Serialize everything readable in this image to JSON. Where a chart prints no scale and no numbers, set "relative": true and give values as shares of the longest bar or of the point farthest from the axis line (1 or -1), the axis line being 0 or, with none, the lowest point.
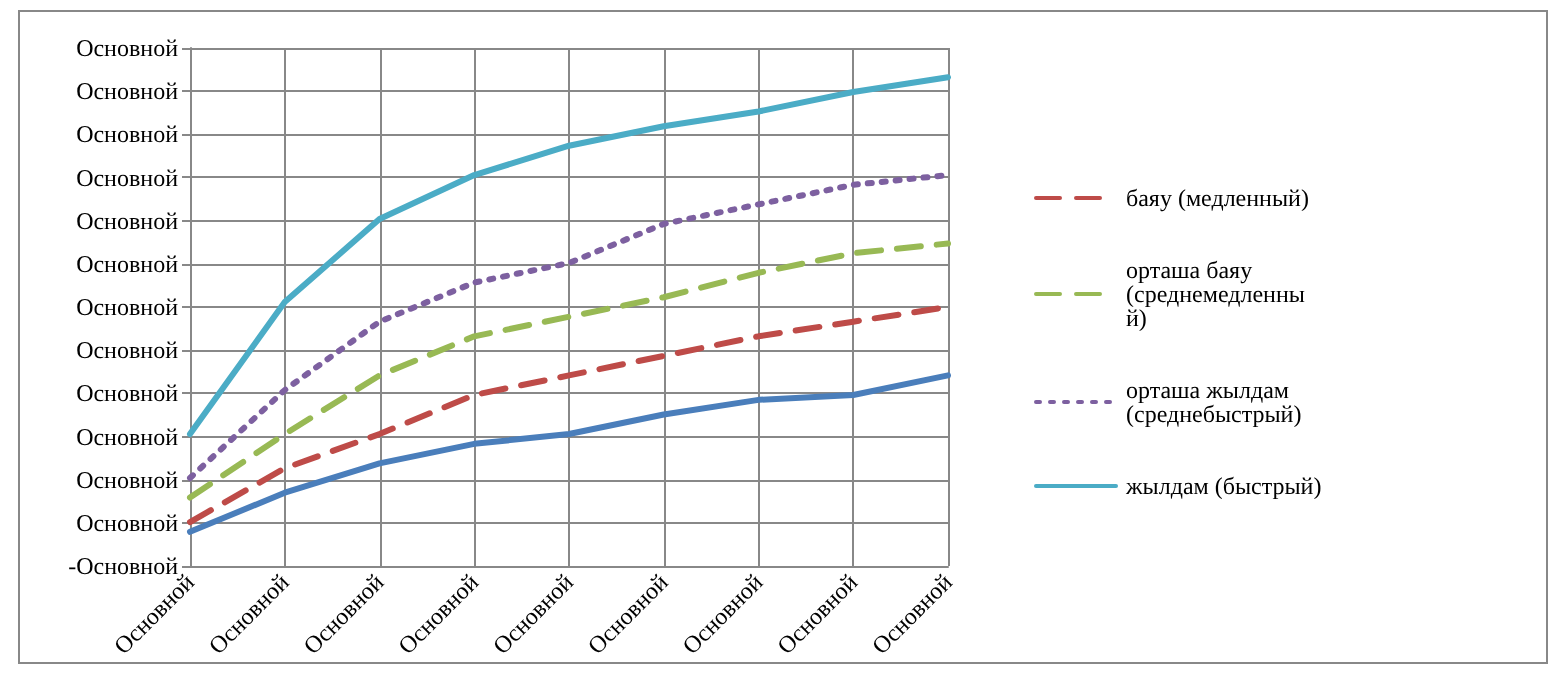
{
  "chart_data": {
    "type": "line",
    "relative": true,
    "categories": [
      "Основной",
      "Основной",
      "Основной",
      "Основной",
      "Основной",
      "Основной",
      "Основной",
      "Основной",
      "Основной"
    ],
    "annotations": [
      "-Основной",
      "Основной",
      "Основной",
      "Основной",
      "Основной",
      "Основной",
      "Основной",
      "Основной",
      "Основной",
      "Основной",
      "Основной",
      "Основной",
      "Основной"
    ],
    "grid": true,
    "legend": "right",
    "marker": "none",
    "series": [
      {
        "color": "#4a7ebb",
        "line_style": "solid",
        "values": [
          0.07,
          0.15,
          0.21,
          0.25,
          0.27,
          0.31,
          0.34,
          0.35,
          0.39
        ]
      },
      {
        "name": "баяу (медленный)",
        "color": "#be4b48",
        "line_style": "dashed",
        "values": [
          0.09,
          0.2,
          0.27,
          0.35,
          0.39,
          0.43,
          0.47,
          0.5,
          0.53
        ]
      },
      {
        "name": "орташа баяу (среднемедленный)",
        "color": "#98b954",
        "line_style": "dashed",
        "values": [
          0.14,
          0.27,
          0.39,
          0.47,
          0.51,
          0.55,
          0.6,
          0.64,
          0.66
        ]
      },
      {
        "name": "орташа жылдам (среднебыстрый)",
        "color": "#7d60a0",
        "line_style": "dotted",
        "values": [
          0.18,
          0.36,
          0.5,
          0.58,
          0.62,
          0.7,
          0.74,
          0.78,
          0.8
        ]
      },
      {
        "name": "жылдам (быстрый)",
        "color": "#4bacc6",
        "line_style": "solid",
        "values": [
          0.27,
          0.54,
          0.71,
          0.8,
          0.86,
          0.9,
          0.93,
          0.97,
          1
        ]
      }
    ]
  }
}
